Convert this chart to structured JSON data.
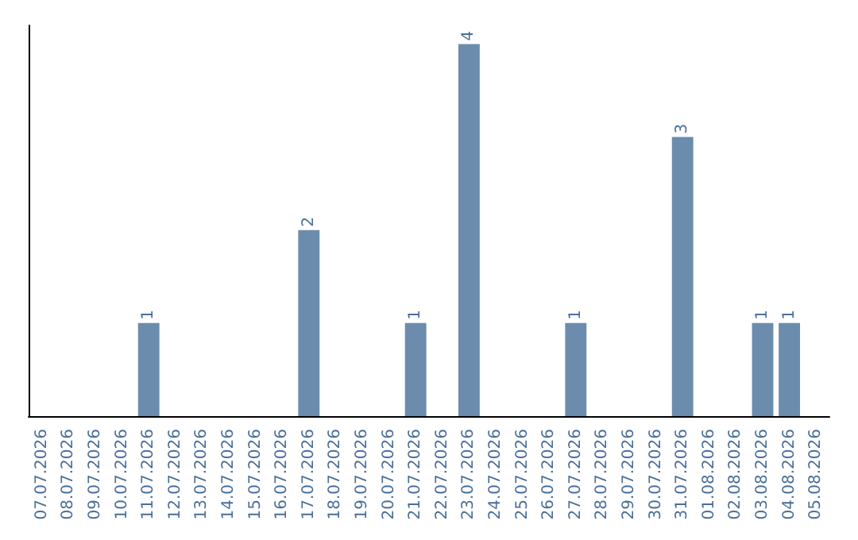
{
  "chart_data": {
    "type": "bar",
    "categories": [
      "07.07.2026",
      "08.07.2026",
      "09.07.2026",
      "10.07.2026",
      "11.07.2026",
      "12.07.2026",
      "13.07.2026",
      "14.07.2026",
      "15.07.2026",
      "16.07.2026",
      "17.07.2026",
      "18.07.2026",
      "19.07.2026",
      "20.07.2026",
      "21.07.2026",
      "22.07.2026",
      "23.07.2026",
      "24.07.2026",
      "25.07.2026",
      "26.07.2026",
      "27.07.2026",
      "28.07.2026",
      "29.07.2026",
      "30.07.2026",
      "31.07.2026",
      "01.08.2026",
      "02.08.2026",
      "03.08.2026",
      "04.08.2026",
      "05.08.2026"
    ],
    "values": [
      0,
      0,
      0,
      0,
      1,
      0,
      0,
      0,
      0,
      0,
      2,
      0,
      0,
      0,
      1,
      0,
      4,
      0,
      0,
      0,
      1,
      0,
      0,
      0,
      3,
      0,
      0,
      1,
      1,
      0
    ],
    "value_labels": [
      null,
      null,
      null,
      null,
      "1",
      null,
      null,
      null,
      null,
      null,
      "2",
      null,
      null,
      null,
      "1",
      null,
      "4",
      null,
      null,
      null,
      "1",
      null,
      null,
      null,
      "3",
      null,
      null,
      "1",
      "1",
      null
    ],
    "color": "#6b8cad",
    "tick_labels": "x"
  }
}
